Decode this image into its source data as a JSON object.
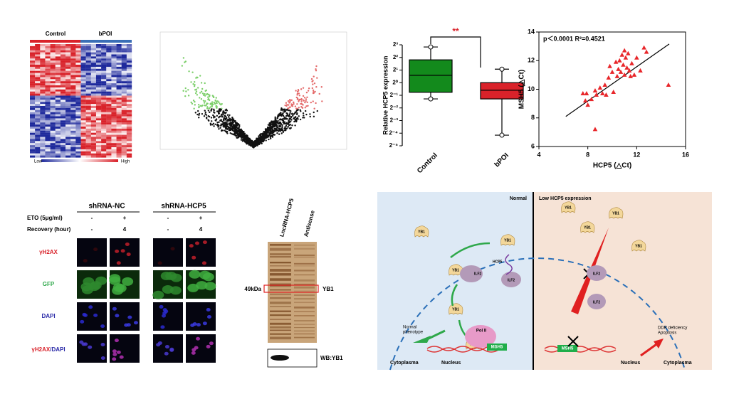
{
  "heatmap": {
    "groups": [
      "Control",
      "bPOI"
    ],
    "legend_low": "Low",
    "legend_high": "High"
  },
  "chart_data": [
    {
      "type": "box",
      "ylabel": "Relative HCP5 expression",
      "categories": [
        "Control",
        "bPOI"
      ],
      "boxes": [
        {
          "min": 0.41,
          "q1": 0.59,
          "median": 1.5,
          "q3": 3.5,
          "max": 7.1,
          "color": "#138a1c"
        },
        {
          "min": 0.056,
          "q1": 0.41,
          "median": 0.66,
          "q3": 1.0,
          "max": 2.1,
          "color": "#d9222a"
        }
      ],
      "log_base": 2,
      "ylim": [
        0.03125,
        8
      ],
      "yticks": [
        {
          "value": 8,
          "label": "2³"
        },
        {
          "value": 4,
          "label": "2²"
        },
        {
          "value": 2,
          "label": "2¹"
        },
        {
          "value": 1,
          "label": "2⁰"
        },
        {
          "value": 0.5,
          "label": "2⁻¹"
        },
        {
          "value": 0.25,
          "label": "2⁻²"
        },
        {
          "value": 0.125,
          "label": "2⁻³"
        },
        {
          "value": 0.0625,
          "label": "2⁻⁴"
        },
        {
          "value": 0.03125,
          "label": "2⁻⁵"
        }
      ],
      "significance": "**",
      "significance_color": "#d9222a"
    },
    {
      "type": "scatter",
      "xlabel": "HCP5 (△Ct)",
      "ylabel": "MSH5 (△Ct)",
      "annotation": "p＜0.0001  R²=0.4521",
      "color": "#e8262a",
      "x": [
        7.6,
        7.8,
        8.0,
        7.9,
        8.3,
        8.6,
        8.7,
        9.0,
        9.2,
        9.4,
        9.5,
        9.7,
        9.8,
        10.0,
        10.1,
        10.3,
        10.4,
        10.5,
        10.6,
        10.7,
        10.8,
        10.9,
        11.0,
        11.0,
        11.1,
        11.2,
        11.3,
        11.4,
        11.5,
        11.6,
        11.8,
        12.0,
        12.3,
        12.6,
        12.8,
        14.6,
        8.6
      ],
      "y": [
        9.7,
        9.2,
        8.9,
        9.7,
        9.3,
        9.9,
        9.6,
        10.1,
        9.7,
        10.3,
        9.6,
        10.8,
        11.6,
        11.2,
        9.8,
        11.9,
        10.9,
        11.4,
        12.0,
        11.2,
        12.4,
        11.7,
        12.7,
        11.0,
        12.2,
        11.5,
        12.5,
        11.3,
        10.9,
        11.8,
        11.0,
        12.2,
        11.3,
        12.9,
        12.6,
        10.3,
        7.2
      ],
      "fit": {
        "x": [
          6.2,
          14.66
        ],
        "y": [
          8.1,
          13.16
        ]
      },
      "xlim": [
        4,
        16
      ],
      "ylim": [
        6,
        14
      ],
      "xticks": [
        4,
        8,
        12,
        16
      ],
      "yticks": [
        6,
        8,
        10,
        12,
        14
      ]
    }
  ],
  "microscopy": {
    "columns": [
      "shRNA-NC",
      "shRNA-HCP5"
    ],
    "conditions": [
      {
        "label": "ETO (5μg/ml)",
        "values": [
          "-",
          "+",
          "-",
          "+"
        ]
      },
      {
        "label": "Recovery (hour)",
        "values": [
          "-",
          "4",
          "-",
          "4"
        ]
      }
    ],
    "rows": [
      "γH2AX",
      "GFP",
      "DAPI"
    ],
    "merged": [
      "γH2AX",
      "/DAPI"
    ]
  },
  "western": {
    "lanes": [
      "LncRNA-HCP5",
      "Antisense"
    ],
    "marker": "49kDa",
    "band": "YB1",
    "blot": "WB:YB1"
  },
  "diagram": {
    "normal": "Normal",
    "low": "Low HCP5 expression",
    "yb1": "YB1",
    "ilf2": "ILF2",
    "hcp5": "HCP5",
    "pol": "Pol II",
    "msh5": "MSH5",
    "normal_phenotype": [
      "Normal",
      "phenotype"
    ],
    "ddr": [
      "DDR deficiency",
      "Apoptosis"
    ],
    "cytoplasma": "Cytoplasma",
    "nucleus": "Nucleus"
  }
}
